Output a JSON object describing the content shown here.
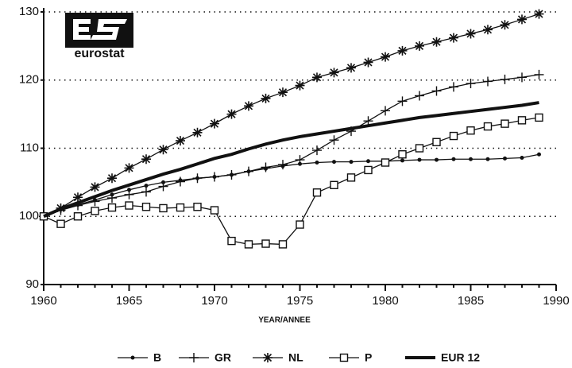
{
  "chart_data": {
    "type": "line",
    "xlabel": "YEAR/ANNEE",
    "logo_text": "eurostat",
    "x": [
      1960,
      1961,
      1962,
      1963,
      1964,
      1965,
      1966,
      1967,
      1968,
      1969,
      1970,
      1971,
      1972,
      1973,
      1974,
      1975,
      1976,
      1977,
      1978,
      1979,
      1980,
      1981,
      1982,
      1983,
      1984,
      1985,
      1986,
      1987,
      1988,
      1989
    ],
    "xlim": [
      1960,
      1990
    ],
    "xticks": [
      1960,
      1965,
      1970,
      1975,
      1980,
      1985,
      1990
    ],
    "ylim": [
      90,
      130
    ],
    "yticks": [
      90,
      100,
      110,
      120,
      130
    ],
    "grid": true,
    "legend": "bottom",
    "series": [
      {
        "name": "B",
        "color": "#111111",
        "marker": "dot",
        "values": [
          100,
          101.0,
          101.7,
          102.4,
          103.2,
          103.9,
          104.5,
          105.0,
          105.3,
          105.6,
          105.8,
          106.1,
          106.6,
          107.0,
          107.4,
          107.7,
          107.9,
          108.0,
          108.0,
          108.1,
          108.1,
          108.2,
          108.3,
          108.3,
          108.4,
          108.4,
          108.4,
          108.5,
          108.6,
          109.1
        ]
      },
      {
        "name": "GR",
        "color": "#111111",
        "marker": "plus",
        "values": [
          100,
          100.9,
          101.6,
          102.2,
          102.7,
          103.2,
          103.6,
          104.4,
          105.1,
          105.6,
          105.8,
          106.1,
          106.6,
          107.2,
          107.6,
          108.3,
          109.7,
          111.2,
          112.5,
          114.0,
          115.5,
          116.9,
          117.7,
          118.4,
          119.0,
          119.5,
          119.8,
          120.1,
          120.4,
          120.8
        ]
      },
      {
        "name": "NL",
        "color": "#111111",
        "marker": "star",
        "values": [
          100,
          101.2,
          102.8,
          104.3,
          105.6,
          107.1,
          108.4,
          109.8,
          111.1,
          112.3,
          113.6,
          115.0,
          116.2,
          117.3,
          118.2,
          119.2,
          120.4,
          121.1,
          121.8,
          122.6,
          123.4,
          124.3,
          125.0,
          125.6,
          126.2,
          126.8,
          127.4,
          128.1,
          128.9,
          129.7
        ]
      },
      {
        "name": "P",
        "color": "#111111",
        "marker": "square",
        "values": [
          100,
          98.9,
          100.0,
          100.8,
          101.3,
          101.6,
          101.4,
          101.2,
          101.3,
          101.4,
          100.9,
          96.4,
          95.9,
          96.0,
          95.9,
          98.8,
          103.5,
          104.6,
          105.7,
          106.8,
          107.9,
          109.1,
          110.0,
          110.9,
          111.8,
          112.6,
          113.2,
          113.6,
          114.1,
          114.5
        ]
      },
      {
        "name": "EUR 12",
        "color": "#111111",
        "marker": "none",
        "values": [
          100,
          101.1,
          102.0,
          102.9,
          103.8,
          104.6,
          105.4,
          106.2,
          106.9,
          107.7,
          108.5,
          109.1,
          109.9,
          110.6,
          111.2,
          111.7,
          112.1,
          112.5,
          112.9,
          113.3,
          113.7,
          114.1,
          114.5,
          114.8,
          115.1,
          115.4,
          115.7,
          116.0,
          116.3,
          116.7
        ]
      }
    ]
  }
}
